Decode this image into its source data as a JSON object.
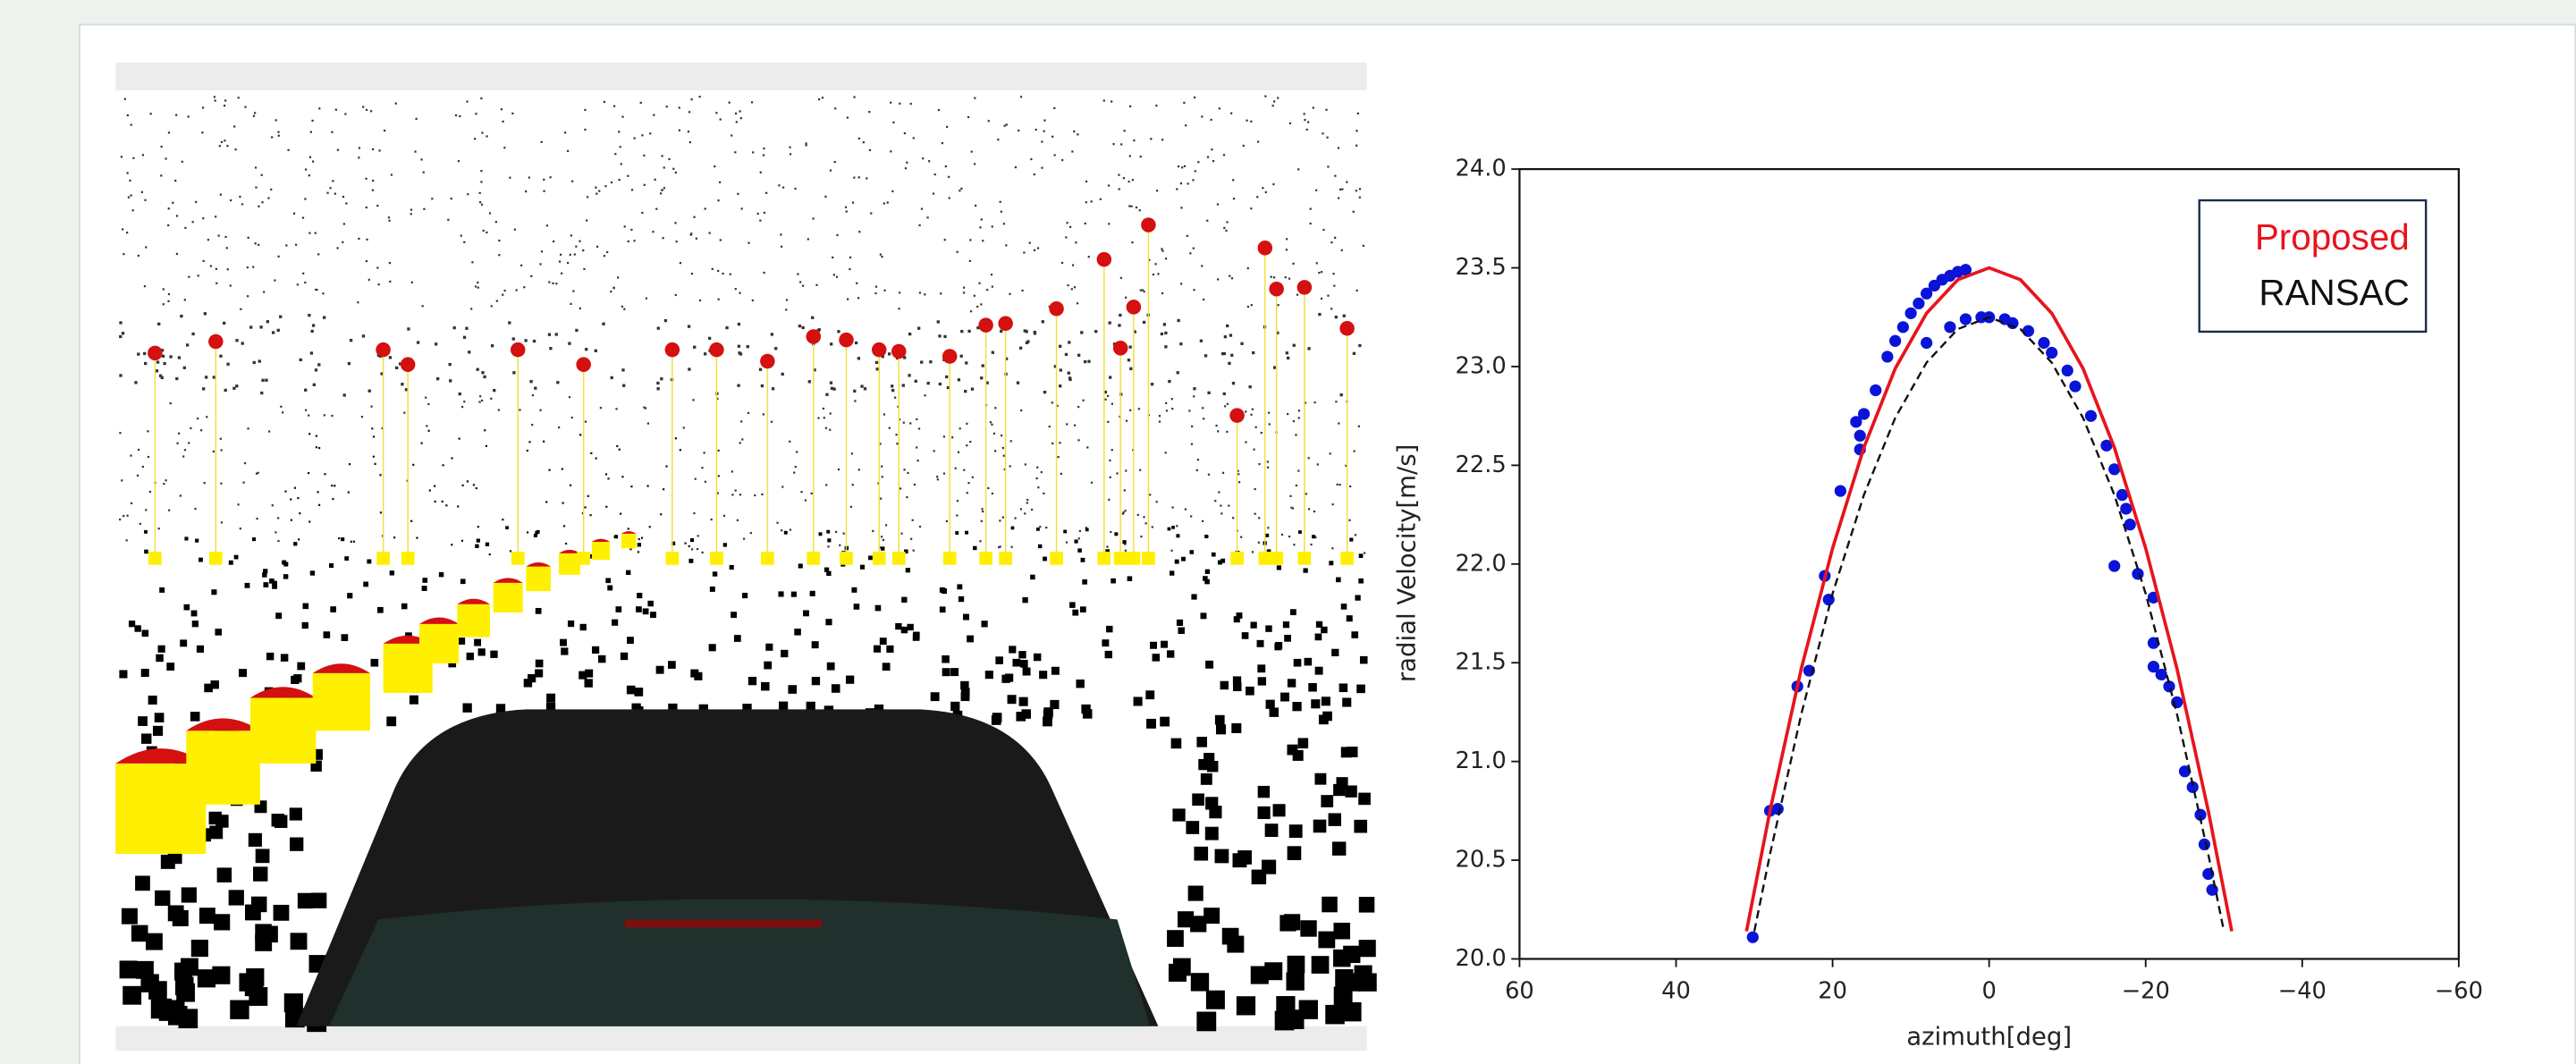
{
  "chart_data": {
    "type": "scatter",
    "xlabel": "azimuth[deg]",
    "ylabel": "radial Velocity[m/s]",
    "xlim": [
      60,
      -60
    ],
    "xticks": [
      60,
      40,
      20,
      0,
      {
        "value": -20,
        "label": "−20"
      },
      {
        "value": -40,
        "label": "−40"
      },
      {
        "value": -60,
        "label": "−60"
      }
    ],
    "ylim": [
      20,
      24
    ],
    "yticks": [
      {
        "value": 20,
        "label": "20.0"
      },
      20.5,
      {
        "value": 21,
        "label": "21.0"
      },
      21.5,
      {
        "value": 22,
        "label": "22.0"
      },
      22.5,
      {
        "value": 23,
        "label": "23.0"
      },
      23.5,
      {
        "value": 24,
        "label": "24.0"
      }
    ],
    "legend": "upper right",
    "series": [
      {
        "type": "scatter",
        "color": "#0a14d8",
        "x": [
          30.2,
          28,
          27,
          24.5,
          23,
          20.5,
          21,
          19,
          17,
          16.5,
          16.5,
          16,
          14.5,
          13,
          12,
          11,
          10,
          9,
          8,
          7,
          6,
          5,
          4,
          3,
          8,
          5,
          3,
          1,
          0,
          -2,
          -3,
          -5,
          -7,
          -8,
          -10,
          -11,
          -13,
          -15,
          -16,
          -17,
          -17.5,
          -18,
          -16,
          -19,
          -21,
          -21,
          -21,
          -22,
          -23,
          -24,
          -25,
          -26,
          -27,
          -27.5,
          -28,
          -28.5
        ],
        "values": [
          20.11,
          20.75,
          20.76,
          21.38,
          21.46,
          21.82,
          21.94,
          22.37,
          22.72,
          22.65,
          22.58,
          22.76,
          22.88,
          23.05,
          23.13,
          23.2,
          23.27,
          23.32,
          23.37,
          23.41,
          23.44,
          23.46,
          23.48,
          23.49,
          23.12,
          23.2,
          23.24,
          23.25,
          23.25,
          23.24,
          23.22,
          23.18,
          23.12,
          23.07,
          22.98,
          22.9,
          22.75,
          22.6,
          22.48,
          22.35,
          22.28,
          22.2,
          21.99,
          21.95,
          21.83,
          21.6,
          21.48,
          21.44,
          21.38,
          21.3,
          20.95,
          20.87,
          20.73,
          20.58,
          20.43,
          20.35
        ]
      },
      {
        "type": "line",
        "name": "Proposed",
        "color": "#e8141c",
        "style": "solid",
        "x": [
          31,
          28,
          24,
          20,
          16,
          12,
          8,
          4,
          0,
          -4,
          -8,
          -12,
          -16,
          -20,
          -24,
          -28,
          -31
        ],
        "values": [
          20.14,
          20.75,
          21.47,
          22.08,
          22.59,
          22.99,
          23.27,
          23.44,
          23.5,
          23.44,
          23.27,
          22.99,
          22.59,
          22.08,
          21.47,
          20.75,
          20.14
        ]
      },
      {
        "type": "line",
        "name": "RANSAC",
        "color": "#111111",
        "style": "dashed",
        "x": [
          30,
          28,
          24,
          20,
          16,
          12,
          8,
          4,
          0,
          -4,
          -8,
          -12,
          -16,
          -20,
          -24,
          -28,
          -30
        ],
        "values": [
          20.14,
          20.53,
          21.24,
          21.85,
          22.35,
          22.74,
          23.02,
          23.19,
          23.25,
          23.19,
          23.02,
          22.74,
          22.35,
          21.85,
          21.24,
          20.53,
          20.14
        ]
      }
    ]
  }
}
